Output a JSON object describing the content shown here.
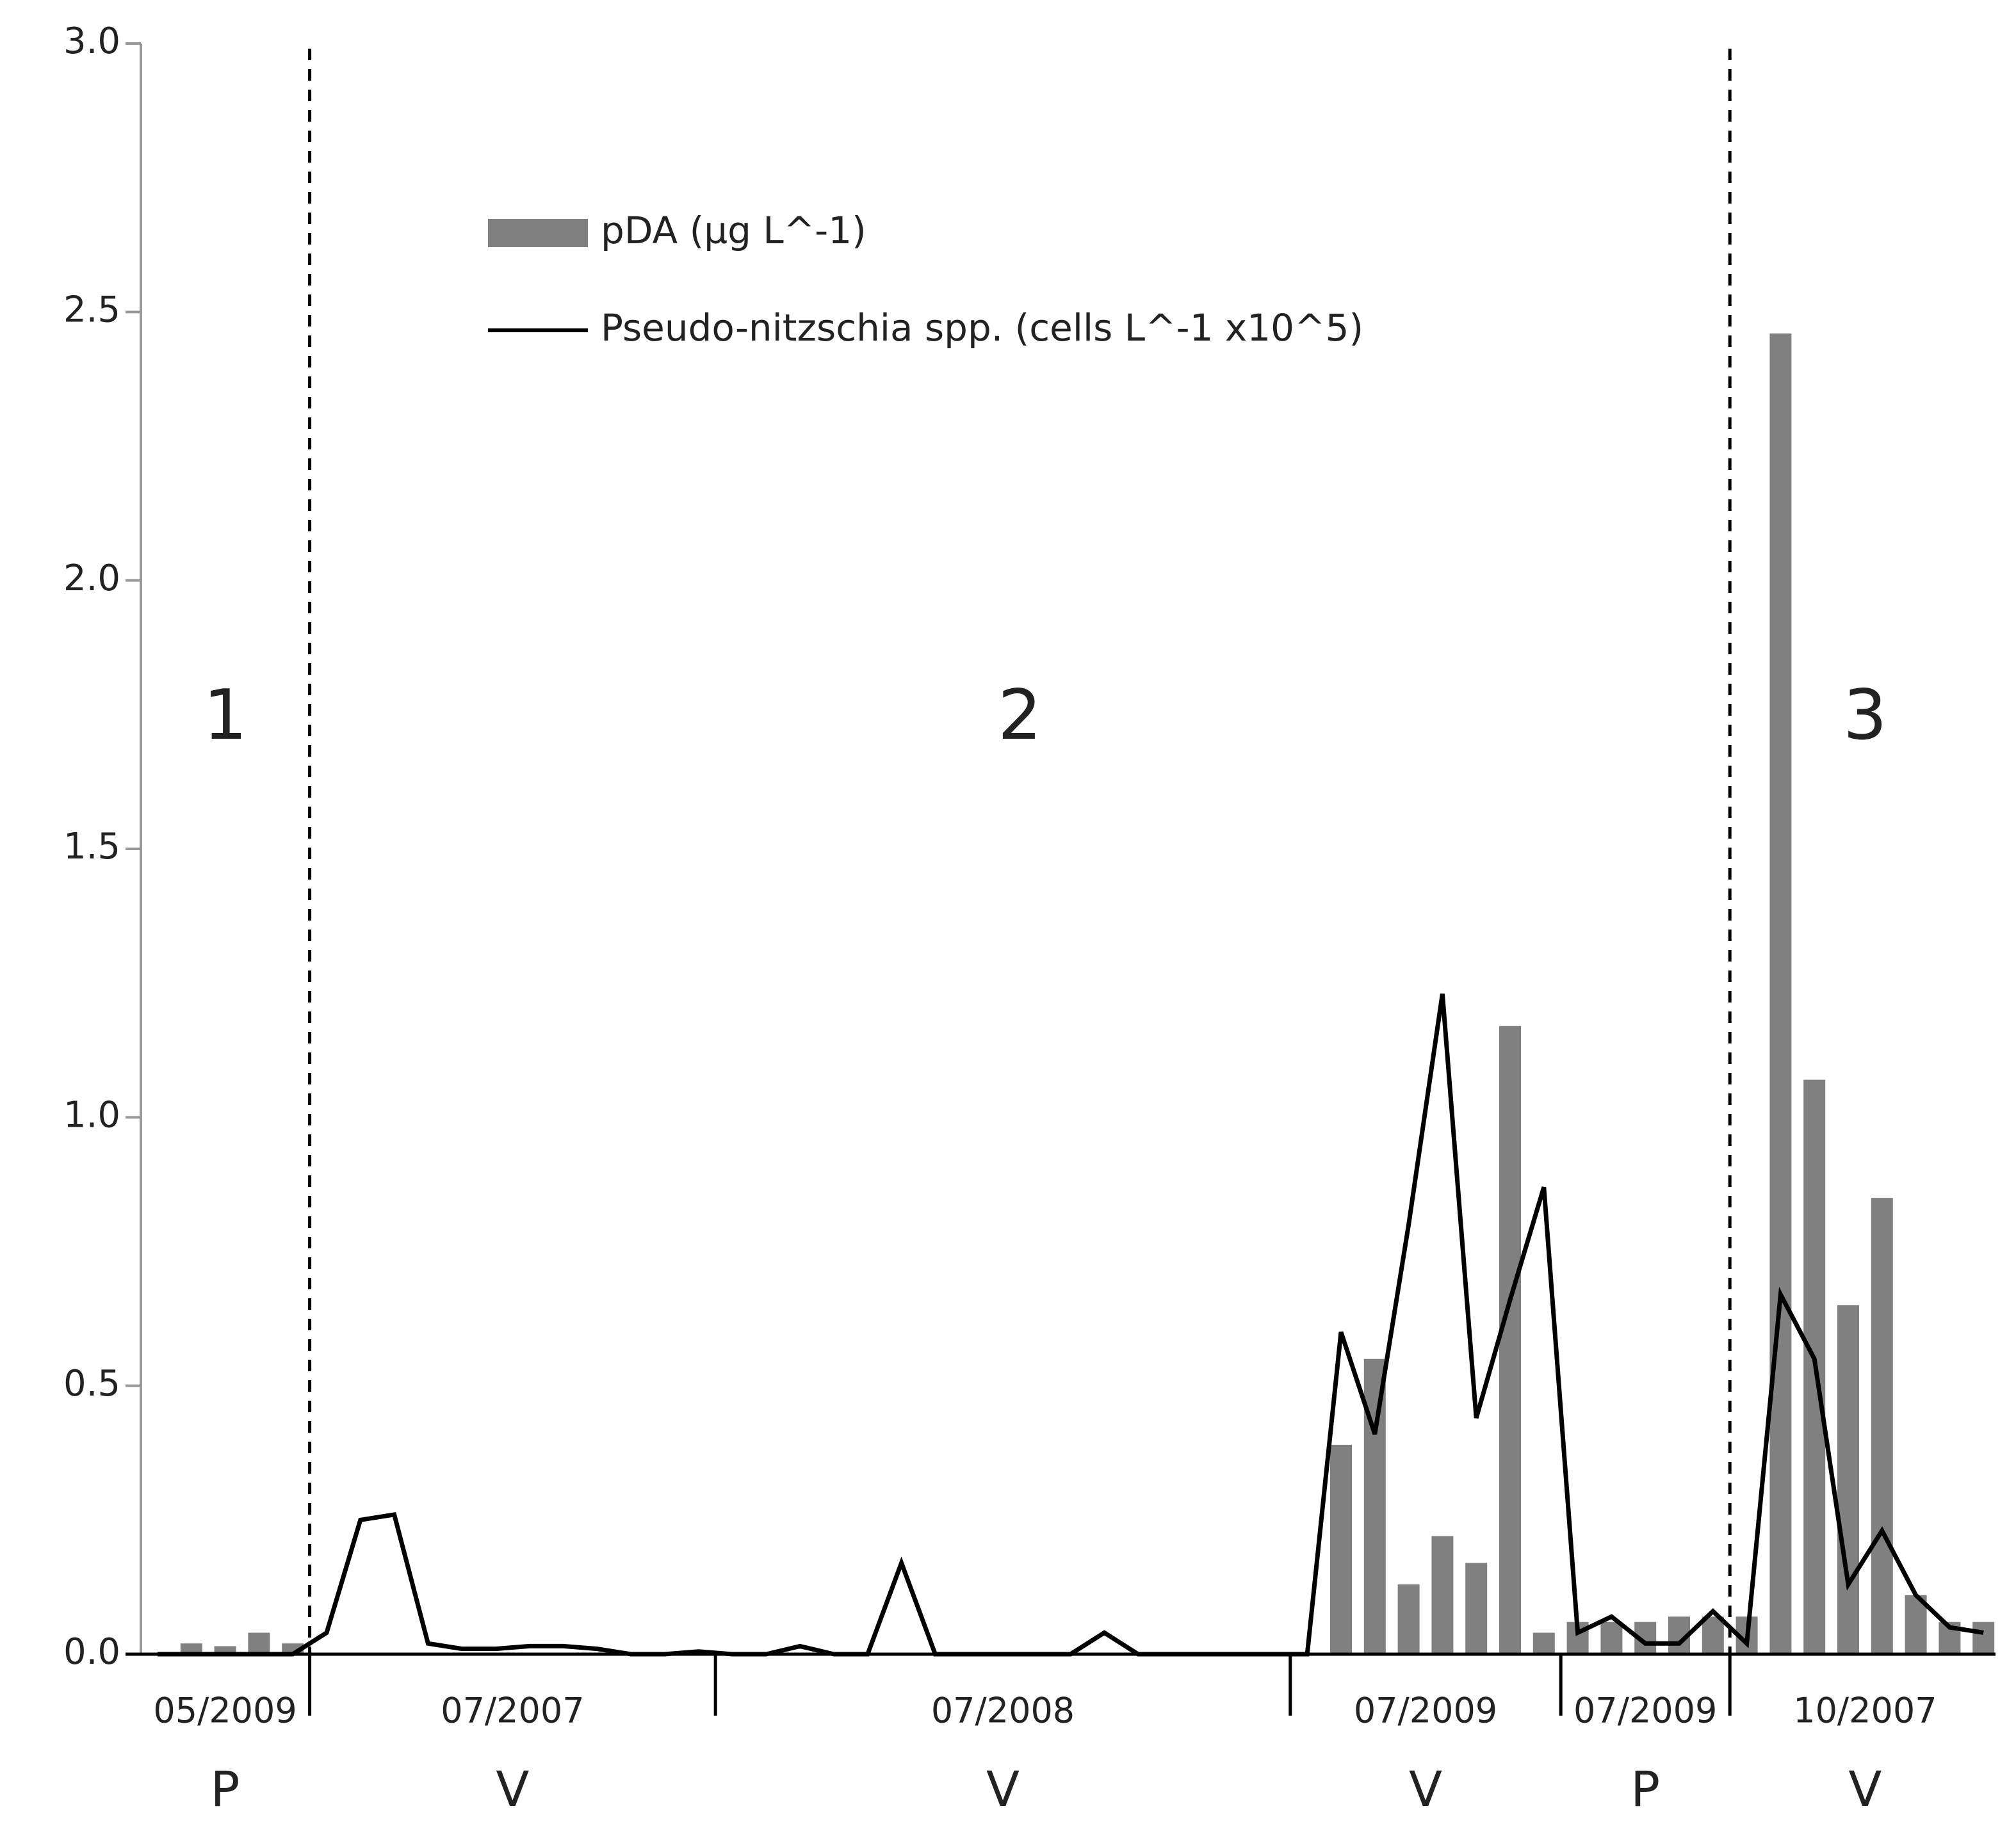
{
  "chart_data": {
    "type": "bar_line",
    "ylim": [
      0,
      3
    ],
    "yticks": [
      {
        "value": 0,
        "label": "0.0"
      },
      {
        "value": 0.5,
        "label": "0.5"
      },
      {
        "value": 1,
        "label": "1.0"
      },
      {
        "value": 1.5,
        "label": "1.5"
      },
      {
        "value": 2,
        "label": "2.0"
      },
      {
        "value": 2.5,
        "label": "2.5"
      },
      {
        "value": 3,
        "label": "3.0"
      }
    ],
    "series": [
      {
        "name": "pDA (µg L^-1)",
        "type": "bar",
        "color": "#808080",
        "values": [
          0,
          0.02,
          0.015,
          0.04,
          0.02,
          0,
          0,
          0,
          0,
          0,
          0,
          0,
          0,
          0,
          0,
          0,
          0,
          0,
          0,
          0,
          0,
          0,
          0,
          0,
          0,
          0,
          0,
          0,
          0,
          0,
          0,
          0,
          0,
          0,
          0,
          0.39,
          0.55,
          0.13,
          0.22,
          0.17,
          1.17,
          0.04,
          0.06,
          0.06,
          0.06,
          0.07,
          0.07,
          0.07,
          2.46,
          1.07,
          0.65,
          0.85,
          0.11,
          0.06,
          0.06
        ]
      },
      {
        "name": "Pseudo-nitzschia spp. (cells L^-1 x10^5)",
        "type": "line",
        "color": "#000000",
        "values": [
          0,
          0,
          0,
          0,
          0,
          0.04,
          0.25,
          0.26,
          0.02,
          0.01,
          0.01,
          0.015,
          0.015,
          0.01,
          0,
          0,
          0.005,
          0,
          0,
          0.015,
          0,
          0,
          0.17,
          0,
          0,
          0,
          0,
          0,
          0.04,
          0,
          0,
          0,
          0,
          0,
          0,
          0.6,
          0.41,
          0.8,
          1.23,
          0.44,
          0.66,
          0.87,
          0.04,
          0.07,
          0.02,
          0.02,
          0.08,
          0.02,
          0.67,
          0.55,
          0.13,
          0.23,
          0.11,
          0.05,
          0.04
        ]
      }
    ],
    "groups": [
      {
        "label": "05/2009",
        "site": "P",
        "first": 0,
        "last": 4
      },
      {
        "label": "07/2007",
        "site": "V",
        "first": 5,
        "last": 16
      },
      {
        "label": "07/2008",
        "site": "V",
        "first": 17,
        "last": 33
      },
      {
        "label": "07/2009",
        "site": "V",
        "first": 34,
        "last": 41
      },
      {
        "label": "07/2009",
        "site": "P",
        "first": 42,
        "last": 46
      },
      {
        "label": "10/2007",
        "site": "V",
        "first": 47,
        "last": 54
      }
    ],
    "zones": [
      {
        "label": "1",
        "first": 0,
        "last": 4
      },
      {
        "label": "2",
        "first": 5,
        "last": 46
      },
      {
        "label": "3",
        "first": 47,
        "last": 54
      }
    ]
  }
}
